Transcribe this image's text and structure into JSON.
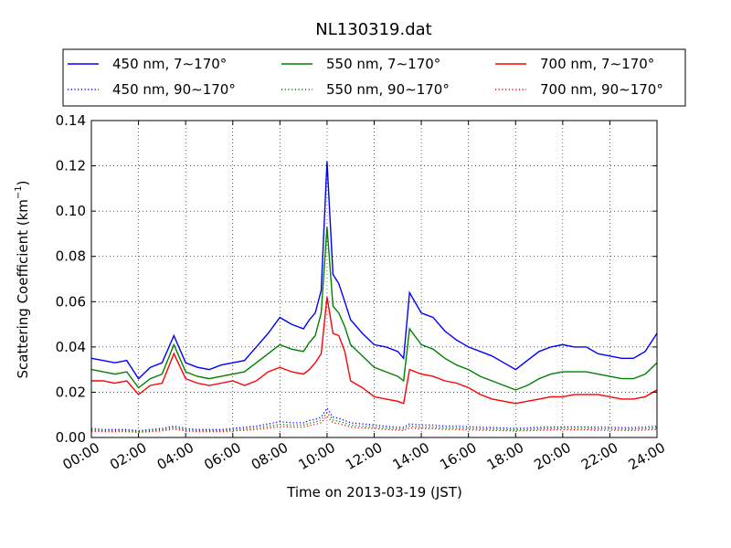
{
  "chart_data": {
    "type": "line",
    "title": "NL130319.dat",
    "xlabel": "Time on 2013-03-19 (JST)",
    "ylabel_main": "Scattering Coefficient (km",
    "ylabel_sup": "−1",
    "ylabel_close": ")",
    "xlim": [
      0,
      24
    ],
    "ylim": [
      0,
      0.14
    ],
    "grid": true,
    "legend_position": "top (above plot)",
    "x_ticks": [
      {
        "value": 0,
        "label": "00:00"
      },
      {
        "value": 2,
        "label": "02:00"
      },
      {
        "value": 4,
        "label": "04:00"
      },
      {
        "value": 6,
        "label": "06:00"
      },
      {
        "value": 8,
        "label": "08:00"
      },
      {
        "value": 10,
        "label": "10:00"
      },
      {
        "value": 12,
        "label": "12:00"
      },
      {
        "value": 14,
        "label": "14:00"
      },
      {
        "value": 16,
        "label": "16:00"
      },
      {
        "value": 18,
        "label": "18:00"
      },
      {
        "value": 20,
        "label": "20:00"
      },
      {
        "value": 22,
        "label": "22:00"
      },
      {
        "value": 24,
        "label": "24:00"
      }
    ],
    "y_ticks": [
      {
        "value": 0,
        "label": "0.00"
      },
      {
        "value": 0.02,
        "label": "0.02"
      },
      {
        "value": 0.04,
        "label": "0.04"
      },
      {
        "value": 0.06,
        "label": "0.06"
      },
      {
        "value": 0.08,
        "label": "0.08"
      },
      {
        "value": 0.1,
        "label": "0.10"
      },
      {
        "value": 0.12,
        "label": "0.12"
      },
      {
        "value": 0.14,
        "label": "0.14"
      }
    ],
    "x": [
      0,
      0.5,
      1,
      1.5,
      2,
      2.5,
      3,
      3.5,
      4,
      4.5,
      5,
      5.5,
      6,
      6.5,
      7,
      7.5,
      8,
      8.5,
      9,
      9.25,
      9.5,
      9.75,
      10,
      10.25,
      10.5,
      10.75,
      11,
      11.5,
      12,
      12.5,
      13,
      13.25,
      13.5,
      14,
      14.5,
      15,
      15.5,
      16,
      16.5,
      17,
      17.5,
      18,
      18.5,
      19,
      19.5,
      20,
      20.5,
      21,
      21.5,
      22,
      22.5,
      23,
      23.5,
      24
    ],
    "series": [
      {
        "name": "450 nm, 7∼170°",
        "color": "#0000ff",
        "style": "solid",
        "values": [
          0.035,
          0.034,
          0.033,
          0.034,
          0.026,
          0.031,
          0.033,
          0.045,
          0.033,
          0.031,
          0.03,
          0.032,
          0.033,
          0.034,
          0.04,
          0.046,
          0.053,
          0.05,
          0.048,
          0.052,
          0.055,
          0.065,
          0.122,
          0.072,
          0.068,
          0.06,
          0.052,
          0.046,
          0.041,
          0.04,
          0.038,
          0.035,
          0.064,
          0.055,
          0.053,
          0.047,
          0.043,
          0.04,
          0.038,
          0.036,
          0.033,
          0.03,
          0.034,
          0.038,
          0.04,
          0.041,
          0.04,
          0.04,
          0.037,
          0.036,
          0.035,
          0.035,
          0.038,
          0.046
        ]
      },
      {
        "name": "550 nm, 7∼170°",
        "color": "#008000",
        "style": "solid",
        "values": [
          0.03,
          0.029,
          0.028,
          0.029,
          0.022,
          0.026,
          0.028,
          0.041,
          0.029,
          0.027,
          0.026,
          0.027,
          0.028,
          0.029,
          0.033,
          0.037,
          0.041,
          0.039,
          0.038,
          0.042,
          0.045,
          0.055,
          0.093,
          0.058,
          0.055,
          0.049,
          0.041,
          0.036,
          0.031,
          0.029,
          0.027,
          0.025,
          0.048,
          0.041,
          0.039,
          0.035,
          0.032,
          0.03,
          0.027,
          0.025,
          0.023,
          0.021,
          0.023,
          0.026,
          0.028,
          0.029,
          0.029,
          0.029,
          0.028,
          0.027,
          0.026,
          0.026,
          0.028,
          0.033
        ]
      },
      {
        "name": "700 nm, 7∼170°",
        "color": "#ff0000",
        "style": "solid",
        "values": [
          0.025,
          0.025,
          0.024,
          0.025,
          0.019,
          0.023,
          0.024,
          0.037,
          0.026,
          0.024,
          0.023,
          0.024,
          0.025,
          0.023,
          0.025,
          0.029,
          0.031,
          0.029,
          0.028,
          0.03,
          0.033,
          0.037,
          0.062,
          0.046,
          0.045,
          0.038,
          0.025,
          0.022,
          0.018,
          0.017,
          0.016,
          0.015,
          0.03,
          0.028,
          0.027,
          0.025,
          0.024,
          0.022,
          0.019,
          0.017,
          0.016,
          0.015,
          0.016,
          0.017,
          0.018,
          0.018,
          0.019,
          0.019,
          0.019,
          0.018,
          0.017,
          0.017,
          0.018,
          0.021
        ]
      },
      {
        "name": "450 nm, 90∼170°",
        "color": "#0000ff",
        "style": "dotted",
        "values": [
          0.004,
          0.0035,
          0.0035,
          0.0035,
          0.003,
          0.0035,
          0.004,
          0.005,
          0.004,
          0.0035,
          0.0035,
          0.0035,
          0.004,
          0.0045,
          0.005,
          0.006,
          0.007,
          0.0065,
          0.0065,
          0.0075,
          0.008,
          0.009,
          0.013,
          0.009,
          0.0085,
          0.0075,
          0.0065,
          0.006,
          0.0055,
          0.005,
          0.0045,
          0.0045,
          0.006,
          0.0055,
          0.0055,
          0.005,
          0.005,
          0.0048,
          0.0045,
          0.0044,
          0.0042,
          0.004,
          0.0042,
          0.0045,
          0.0046,
          0.0047,
          0.0047,
          0.0047,
          0.0045,
          0.0045,
          0.0044,
          0.0044,
          0.0046,
          0.005
        ]
      },
      {
        "name": "550 nm, 90∼170°",
        "color": "#008000",
        "style": "dotted",
        "values": [
          0.0033,
          0.003,
          0.003,
          0.003,
          0.0026,
          0.003,
          0.0034,
          0.0043,
          0.0034,
          0.003,
          0.003,
          0.003,
          0.0034,
          0.0038,
          0.0042,
          0.005,
          0.0058,
          0.0055,
          0.0055,
          0.0063,
          0.0068,
          0.0077,
          0.011,
          0.0077,
          0.0072,
          0.0064,
          0.0055,
          0.005,
          0.0046,
          0.0042,
          0.0038,
          0.0037,
          0.005,
          0.0046,
          0.0046,
          0.0042,
          0.0042,
          0.004,
          0.0038,
          0.0037,
          0.0035,
          0.0034,
          0.0035,
          0.0038,
          0.0039,
          0.004,
          0.004,
          0.004,
          0.0038,
          0.0038,
          0.0037,
          0.0037,
          0.0039,
          0.0042
        ]
      },
      {
        "name": "700 nm, 90∼170°",
        "color": "#ff0000",
        "style": "dotted",
        "values": [
          0.0028,
          0.0026,
          0.0026,
          0.0026,
          0.0022,
          0.0026,
          0.0029,
          0.0037,
          0.0029,
          0.0026,
          0.0026,
          0.0026,
          0.0029,
          0.0032,
          0.0035,
          0.0042,
          0.0049,
          0.0046,
          0.0046,
          0.0053,
          0.0058,
          0.0065,
          0.0093,
          0.0065,
          0.0061,
          0.0054,
          0.0046,
          0.0042,
          0.0039,
          0.0036,
          0.0032,
          0.0031,
          0.0042,
          0.0039,
          0.0039,
          0.0036,
          0.0036,
          0.0034,
          0.0032,
          0.0031,
          0.003,
          0.0029,
          0.003,
          0.0032,
          0.0033,
          0.0034,
          0.0034,
          0.0034,
          0.0032,
          0.0032,
          0.0031,
          0.0031,
          0.0033,
          0.0036
        ]
      }
    ]
  }
}
